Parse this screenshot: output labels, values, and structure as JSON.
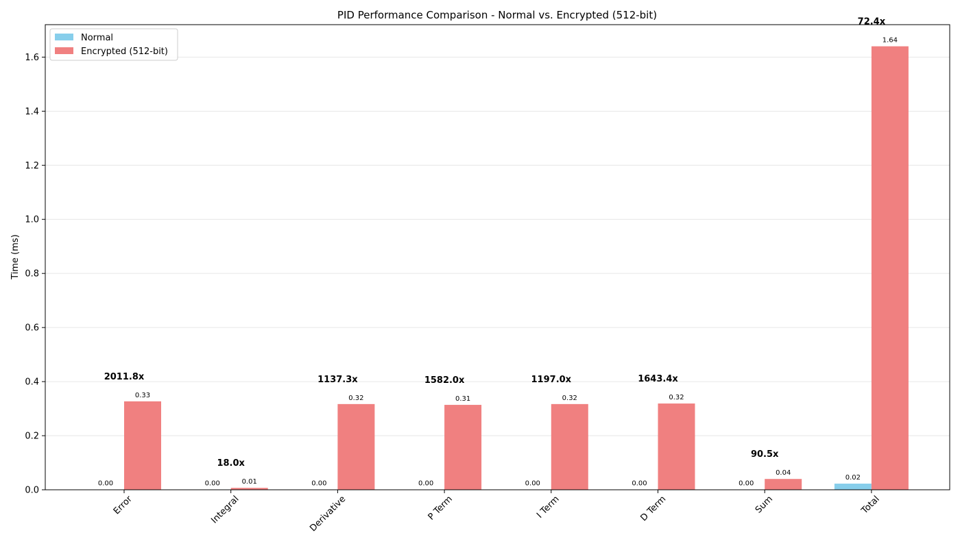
{
  "chart_data": {
    "type": "bar",
    "title": "PID Performance Comparison - Normal vs. Encrypted (512-bit)",
    "xlabel": "",
    "ylabel": "Time (ms)",
    "ylim": [
      0,
      1.72
    ],
    "yticks": [
      "0.0",
      "0.2",
      "0.4",
      "0.6",
      "0.8",
      "1.0",
      "1.2",
      "1.4",
      "1.6"
    ],
    "grid": "horizontal",
    "legend_position": "top-left",
    "categories": [
      "Error",
      "Integral",
      "Derivative",
      "P Term",
      "I Term",
      "D Term",
      "Sum",
      "Total"
    ],
    "series": [
      {
        "name": "Normal",
        "color": "#87ceeb",
        "values": [
          0.00016,
          0.00039,
          0.00028,
          0.0002,
          0.00027,
          0.00019,
          0.00044,
          0.0227
        ],
        "labels": [
          "0.00",
          "0.00",
          "0.00",
          "0.00",
          "0.00",
          "0.00",
          "0.00",
          "0.02"
        ]
      },
      {
        "name": "Encrypted (512-bit)",
        "color": "#f08080",
        "values": [
          0.327,
          0.007,
          0.317,
          0.314,
          0.317,
          0.319,
          0.04,
          1.64
        ],
        "labels": [
          "0.33",
          "0.01",
          "0.32",
          "0.31",
          "0.32",
          "0.32",
          "0.04",
          "1.64"
        ]
      }
    ],
    "ratios": [
      "2011.8x",
      "18.0x",
      "1137.3x",
      "1582.0x",
      "1197.0x",
      "1643.4x",
      "90.5x",
      "72.4x"
    ]
  }
}
